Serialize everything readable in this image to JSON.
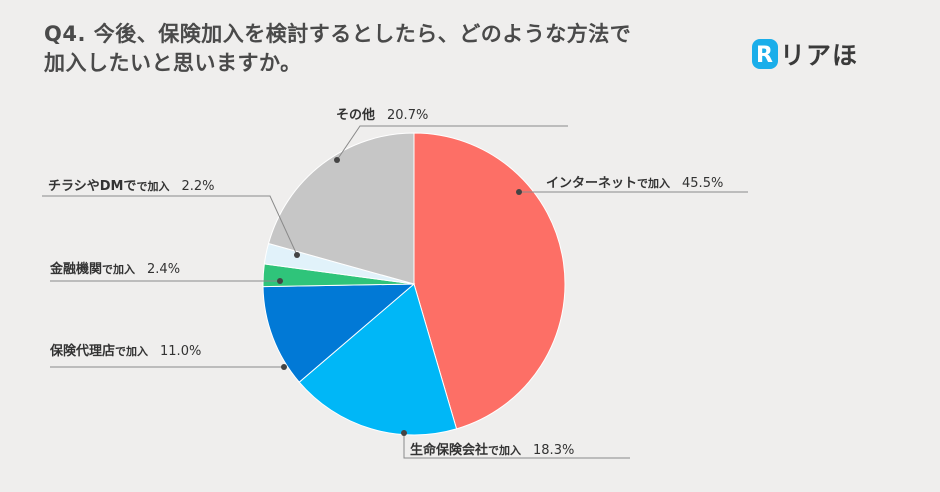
{
  "title_lines": [
    "Q4. 今後、保険加入を検討するとしたら、どのような方法で",
    "加入したいと思いますか。"
  ],
  "logo": {
    "text": "リアほ",
    "mark_letter": "R",
    "mark_color": "#1aaeea"
  },
  "chart_data": {
    "type": "pie",
    "title": "Q4. 今後、保険加入を検討するとしたら、どのような方法で加入したいと思いますか。",
    "start": "12 o'clock",
    "direction": "clockwise",
    "slices": [
      {
        "name": "インターネット",
        "suffix": "で加入",
        "value": 45.5,
        "label": "45.5%",
        "color": "#fd6f66"
      },
      {
        "name": "生命保険会社",
        "suffix": "で加入",
        "value": 18.3,
        "label": "18.3%",
        "color": "#00b7f7"
      },
      {
        "name": "保険代理店",
        "suffix": "で加入",
        "value": 11.0,
        "label": "11.0%",
        "color": "#0179d6"
      },
      {
        "name": "金融機関",
        "suffix": "で加入",
        "value": 2.4,
        "label": "2.4%",
        "color": "#2fc47a"
      },
      {
        "name": "チラシやDMで",
        "suffix": "で加入",
        "value": 2.2,
        "label": "2.2%",
        "color": "#e1f2fa"
      },
      {
        "name": "その他",
        "suffix": "",
        "value": 20.7,
        "label": "20.7%",
        "color": "#c6c6c6"
      }
    ]
  }
}
